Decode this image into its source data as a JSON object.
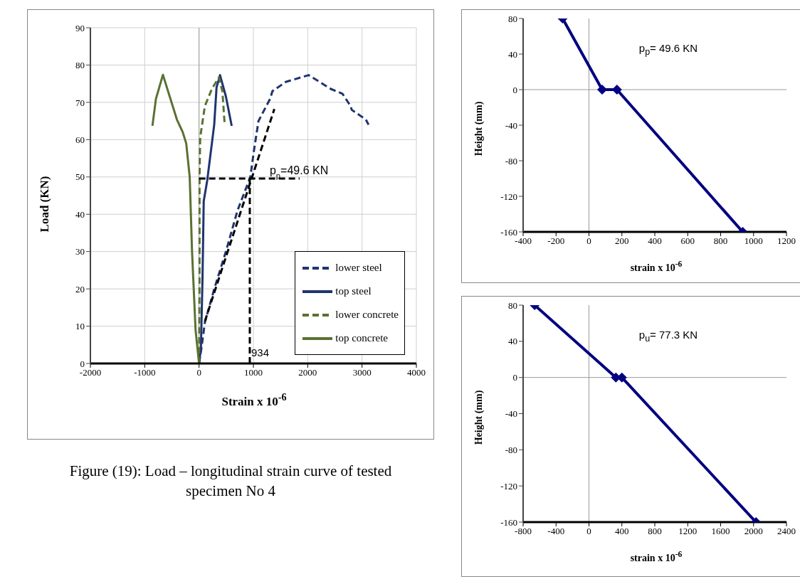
{
  "chart_data": [
    {
      "type": "line",
      "xlabel": "Strain x 10$^{-6}$",
      "ylabel": "Load (KN)",
      "xlim": [
        -2000,
        4000
      ],
      "xticks": [
        -2000,
        -1000,
        0,
        1000,
        2000,
        3000,
        4000
      ],
      "ylim": [
        0,
        90
      ],
      "yticks": [
        0,
        10,
        20,
        30,
        40,
        50,
        60,
        70,
        80,
        90
      ],
      "grid": true,
      "legend": "bottom right",
      "marker": "none",
      "series": [
        {
          "name": "lower steel",
          "color": "#1f3470",
          "line_style": "dashed",
          "x": [
            0,
            43,
            107,
            280,
            494,
            708,
            944,
            1010,
            1094,
            1310,
            1350,
            1600,
            2017,
            2425,
            2640,
            2790,
            2810,
            3070,
            3120
          ],
          "values": [
            0,
            4,
            11,
            20,
            30,
            41,
            50,
            57,
            65,
            71,
            73,
            75.5,
            77.3,
            73.6,
            72.3,
            69,
            68,
            65.4,
            64
          ]
        },
        {
          "name": "top steel",
          "color": "#1f3470",
          "line_style": "solid",
          "x": [
            0,
            34,
            64,
            86,
            150,
            236,
            279,
            322,
            386,
            494,
            601
          ],
          "values": [
            0,
            4,
            23,
            43.5,
            49,
            59,
            64,
            74,
            77.3,
            71.6,
            63.7
          ]
        },
        {
          "name": "lower concrete",
          "color": "#5a7132",
          "line_style": "dashed",
          "x": [
            0,
            9,
            9,
            21,
            107,
            236,
            365,
            429,
            472
          ],
          "values": [
            0,
            23,
            50,
            60.6,
            69,
            73.6,
            76.7,
            73,
            64
          ]
        },
        {
          "name": "top concrete",
          "color": "#5a7132",
          "line_style": "solid",
          "x": [
            0,
            -64,
            -129,
            -172,
            -236,
            -300,
            -408,
            -665,
            -794,
            -858
          ],
          "values": [
            0,
            9,
            30,
            50,
            59,
            62,
            65.4,
            77.4,
            70.9,
            63.7
          ]
        },
        {
          "color": "#000000",
          "line_style": "dashed",
          "x": [
            107,
            1386
          ],
          "values": [
            11.3,
            68.2
          ]
        },
        {
          "color": "#000000",
          "line_style": "dashed",
          "x": [
            0,
            1850
          ],
          "values": [
            49.6,
            49.6
          ]
        },
        {
          "color": "#000000",
          "line_style": "dashed",
          "x": [
            934,
            934
          ],
          "values": [
            0,
            49.6
          ]
        }
      ],
      "annotations": [
        {
          "text": "p$_{p}$=49.6 KN",
          "x": 934,
          "y": 49.6
        },
        {
          "text": "934",
          "x": 934,
          "y": 0
        },
        "Figure (19): Load – longitudinal strain curve of tested specimen No 4"
      ]
    },
    {
      "type": "line",
      "title": "p$_{p}$= 49.6 KN",
      "xlabel": "strain x 10$^{-6}$",
      "ylabel": "Height (mm)",
      "xlim": [
        -400,
        1200
      ],
      "xticks": [
        -400,
        -200,
        0,
        200,
        400,
        600,
        800,
        1000,
        1200
      ],
      "ylim": [
        -160,
        80
      ],
      "yticks": [
        -160,
        -120,
        -80,
        -40,
        0,
        40,
        80
      ],
      "marker": "diamond",
      "line_style": "solid",
      "series": [
        {
          "color": "#000080",
          "x": [
            -160,
            80,
            170,
            934
          ],
          "values": [
            80,
            0,
            0,
            -160
          ]
        }
      ]
    },
    {
      "type": "line",
      "title": "p$_{u}$= 77.3  KN",
      "xlabel": "strain x 10$^{-6}$",
      "ylabel": "Height (mm)",
      "xlim": [
        -800,
        2400
      ],
      "xticks": [
        -800,
        -400,
        0,
        400,
        800,
        1200,
        1600,
        2000,
        2400
      ],
      "ylim": [
        -160,
        80
      ],
      "yticks": [
        -160,
        -120,
        -80,
        -40,
        0,
        40,
        80
      ],
      "marker": "diamond",
      "line_style": "solid",
      "series": [
        {
          "color": "#000080",
          "x": [
            -660,
            327,
            400,
            2029
          ],
          "values": [
            80,
            0,
            0,
            -160
          ]
        }
      ]
    }
  ]
}
